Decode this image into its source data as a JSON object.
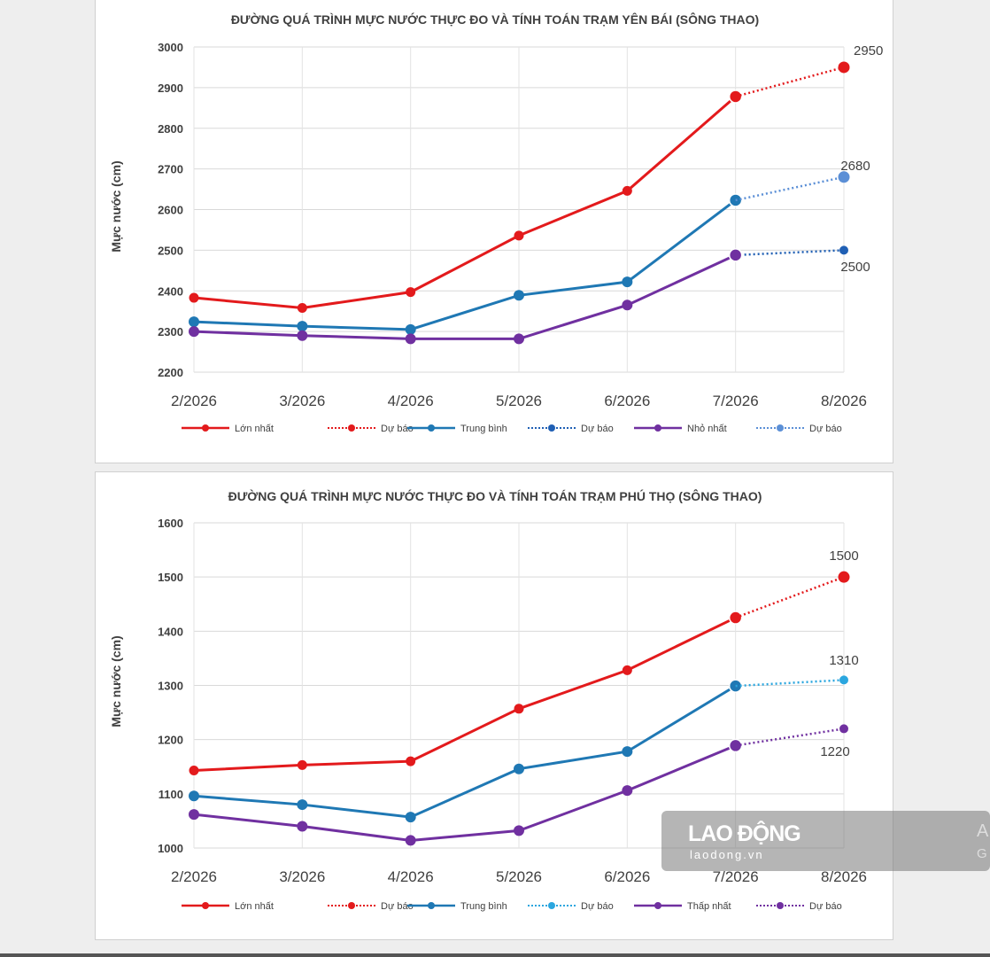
{
  "chart_data": [
    {
      "type": "line",
      "title": "ĐƯỜNG QUÁ TRÌNH MỰC NƯỚC THỰC ĐO VÀ TÍNH TOÁN TRẠM YÊN BÁI (SÔNG THAO)",
      "ylabel": "Mực nước (cm)",
      "xlabel": "",
      "categories": [
        "2/2026",
        "3/2026",
        "4/2026",
        "5/2026",
        "6/2026",
        "7/2026",
        "8/2026"
      ],
      "ylim": [
        2200,
        3000
      ],
      "yticks": [
        2200,
        2300,
        2400,
        2500,
        2600,
        2700,
        2800,
        2900,
        3000
      ],
      "grid": true,
      "legend_position": "bottom",
      "series": [
        {
          "name": "Lớn nhất",
          "color": "#e31a1c",
          "values": [
            2383,
            2358,
            2397,
            2536,
            2646,
            2878,
            null
          ]
        },
        {
          "name": "Dự báo",
          "color": "#e31a1c",
          "dashed": true,
          "values": [
            null,
            null,
            null,
            null,
            null,
            2878,
            2950
          ]
        },
        {
          "name": "Trung bình",
          "color": "#1f78b4",
          "values": [
            2324,
            2313,
            2305,
            2389,
            2422,
            2623,
            null
          ]
        },
        {
          "name": "Dự báo",
          "color": "#1f5fb4",
          "dashed": true,
          "values": [
            null,
            null,
            null,
            null,
            null,
            2488,
            2500
          ]
        },
        {
          "name": "Nhỏ nhất",
          "color": "#7030a0",
          "values": [
            2300,
            2290,
            2282,
            2282,
            2365,
            2488,
            null
          ]
        },
        {
          "name": "Dự báo",
          "color": "#5b8fd6",
          "dashed": true,
          "values": [
            null,
            null,
            null,
            null,
            null,
            2623,
            2680
          ]
        }
      ],
      "annotations": [
        "2950",
        "2680",
        "2500"
      ]
    },
    {
      "type": "line",
      "title": "ĐƯỜNG QUÁ TRÌNH MỰC NƯỚC THỰC ĐO VÀ TÍNH TOÁN TRẠM PHÚ THỌ (SÔNG THAO)",
      "ylabel": "Mực nước (cm)",
      "xlabel": "",
      "categories": [
        "2/2026",
        "3/2026",
        "4/2026",
        "5/2026",
        "6/2026",
        "7/2026",
        "8/2026"
      ],
      "ylim": [
        1000,
        1600
      ],
      "yticks": [
        1000,
        1100,
        1200,
        1300,
        1400,
        1500,
        1600
      ],
      "grid": true,
      "legend_position": "bottom",
      "series": [
        {
          "name": "Lớn nhất",
          "color": "#e31a1c",
          "values": [
            1143,
            1153,
            1160,
            1257,
            1328,
            1425,
            null
          ]
        },
        {
          "name": "Dự báo",
          "color": "#e31a1c",
          "dashed": true,
          "values": [
            null,
            null,
            null,
            null,
            null,
            1425,
            1500
          ]
        },
        {
          "name": "Trung bình",
          "color": "#1f78b4",
          "values": [
            1096,
            1080,
            1057,
            1146,
            1178,
            1299,
            null
          ]
        },
        {
          "name": "Dự báo",
          "color": "#2aa6df",
          "dashed": true,
          "values": [
            null,
            null,
            null,
            null,
            null,
            1299,
            1310
          ]
        },
        {
          "name": "Thấp nhất",
          "color": "#7030a0",
          "values": [
            1062,
            1040,
            1014,
            1032,
            1106,
            1189,
            null
          ]
        },
        {
          "name": "Dự báo",
          "color": "#7030a0",
          "dashed": true,
          "values": [
            null,
            null,
            null,
            null,
            null,
            1189,
            1220
          ]
        }
      ],
      "annotations": [
        "1500",
        "1310",
        "1220"
      ]
    }
  ],
  "watermark": {
    "logo": "LAO ĐỘNG",
    "url": "laodong.vn",
    "edge_a": "A",
    "edge_g": "G"
  }
}
